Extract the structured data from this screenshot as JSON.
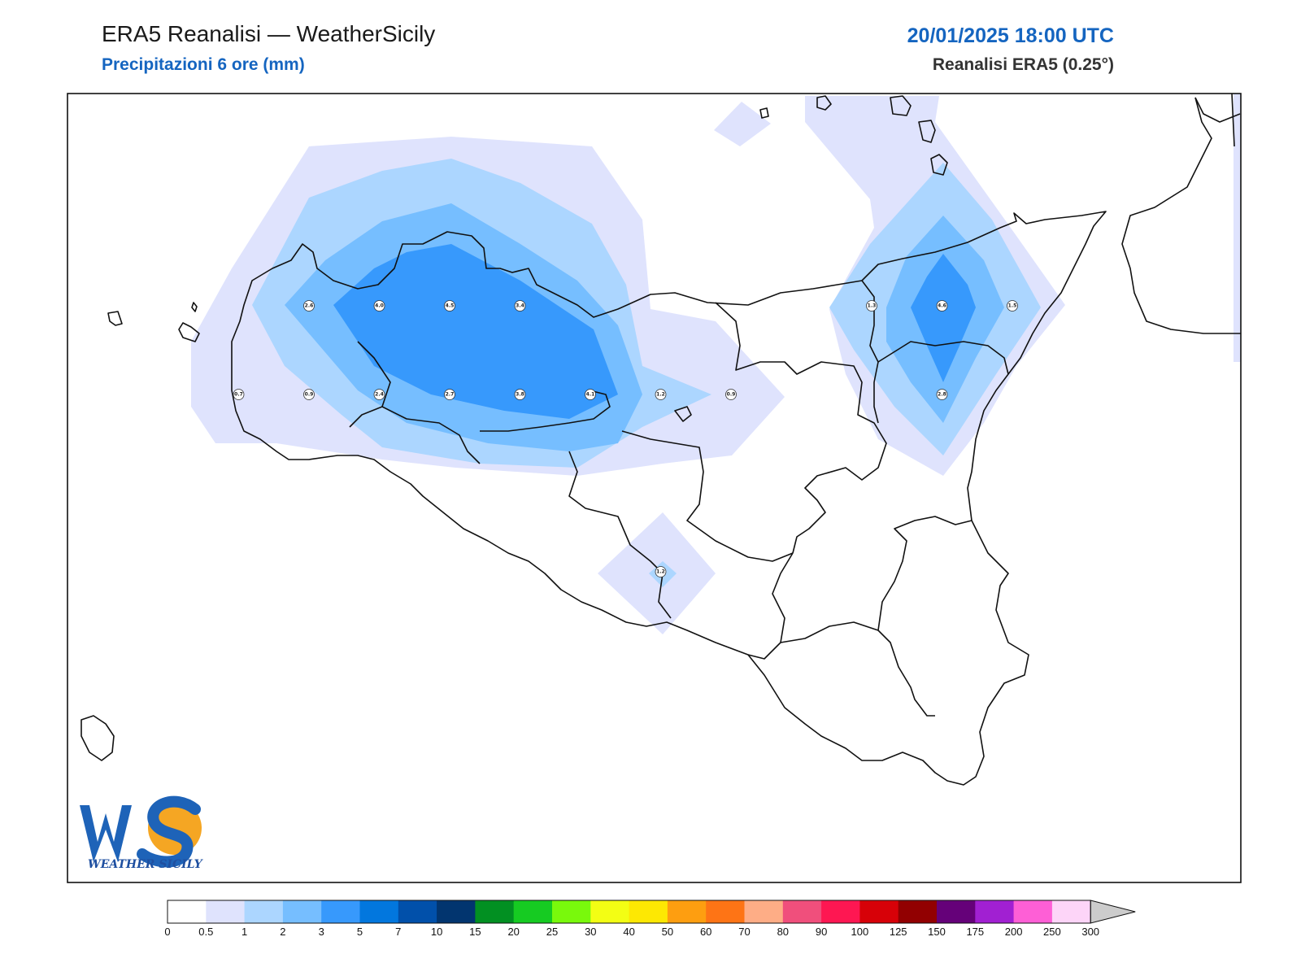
{
  "header": {
    "title": "ERA5 Reanalisi — WeatherSicily",
    "subtitle": "Precipitazioni 6 ore (mm)",
    "datetime": "20/01/2025 18:00 UTC",
    "source": "Reanalisi ERA5 (0.25°)"
  },
  "logo": {
    "letters": "WS",
    "text": "WEATHER SICILY"
  },
  "colorbar": {
    "ticks": [
      "0",
      "0.5",
      "1",
      "2",
      "3",
      "5",
      "7",
      "10",
      "15",
      "20",
      "25",
      "30",
      "40",
      "50",
      "60",
      "70",
      "80",
      "90",
      "100",
      "125",
      "150",
      "175",
      "200",
      "250",
      "300"
    ],
    "colors": [
      "#ffffff",
      "#dfe3fd",
      "#acd6ff",
      "#76beff",
      "#3799fc",
      "#0277de",
      "#0150aa",
      "#02356f",
      "#029022",
      "#16cb22",
      "#79f90c",
      "#f3fe14",
      "#fde803",
      "#fe9e10",
      "#fe7415",
      "#fead86",
      "#f04f7c",
      "#fe1752",
      "#d70108",
      "#920001",
      "#650179",
      "#a120d2",
      "#fe5fd6",
      "#fdd5f8"
    ],
    "extend_color": "#cccccc"
  },
  "grid_values": [
    {
      "v": "2.6",
      "lon": 12.5,
      "lat": 38.0
    },
    {
      "v": "4.0",
      "lon": 12.75,
      "lat": 38.0
    },
    {
      "v": "4.5",
      "lon": 13.0,
      "lat": 38.0
    },
    {
      "v": "3.4",
      "lon": 13.25,
      "lat": 38.0
    },
    {
      "v": "1.3",
      "lon": 14.5,
      "lat": 38.0
    },
    {
      "v": "4.6",
      "lon": 14.75,
      "lat": 38.0
    },
    {
      "v": "1.5",
      "lon": 15.0,
      "lat": 38.0
    },
    {
      "v": "0.7",
      "lon": 12.25,
      "lat": 37.75
    },
    {
      "v": "0.9",
      "lon": 12.5,
      "lat": 37.75
    },
    {
      "v": "2.4",
      "lon": 12.75,
      "lat": 37.75
    },
    {
      "v": "2.7",
      "lon": 13.0,
      "lat": 37.75
    },
    {
      "v": "3.8",
      "lon": 13.25,
      "lat": 37.75
    },
    {
      "v": "4.1",
      "lon": 13.5,
      "lat": 37.75
    },
    {
      "v": "1.2",
      "lon": 13.75,
      "lat": 37.75
    },
    {
      "v": "0.9",
      "lon": 14.0,
      "lat": 37.75
    },
    {
      "v": "2.8",
      "lon": 14.75,
      "lat": 37.75
    },
    {
      "v": "1.2",
      "lon": 13.75,
      "lat": 37.25
    }
  ]
}
